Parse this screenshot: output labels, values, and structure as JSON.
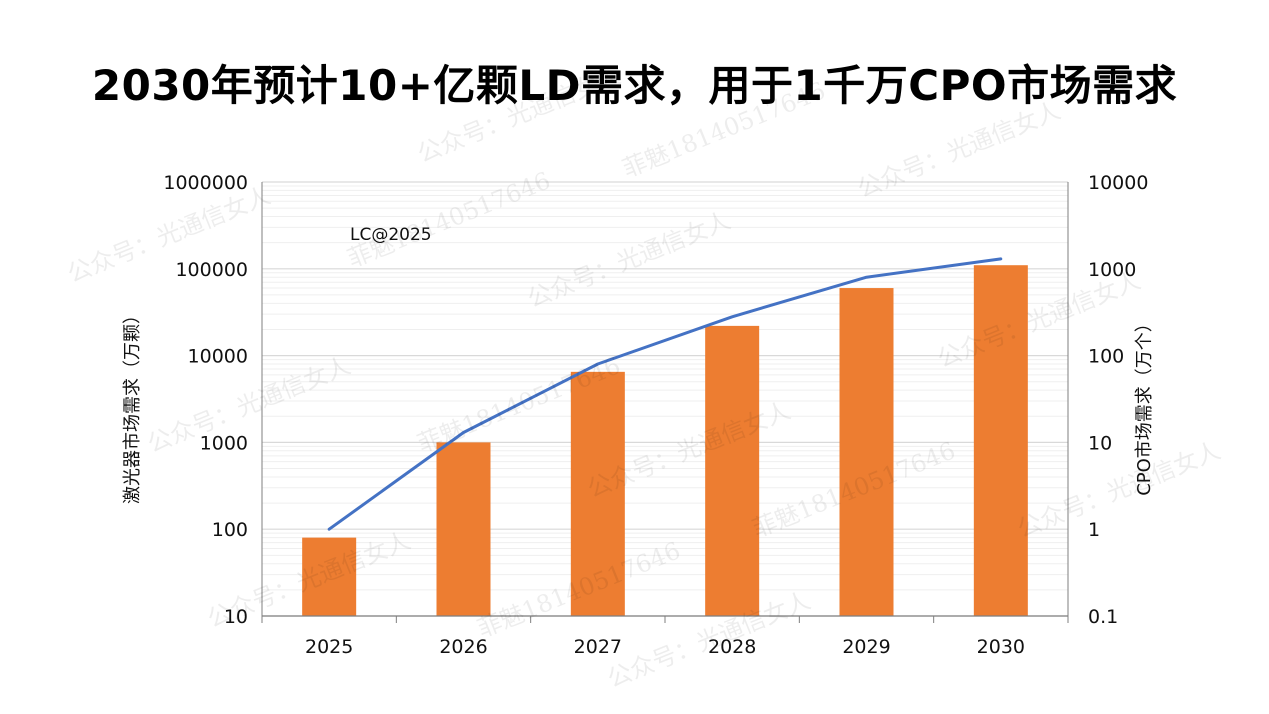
{
  "title": "2030年预计10+亿颗LD需求，用于1千万CPO市场需求",
  "watermarks": {
    "public_account": "公众号：光通信女人",
    "contact": "菲魅18140517646"
  },
  "colors": {
    "bar": "#ED7D31",
    "line": "#4472C4",
    "grid": "#d9d9d9"
  },
  "chart_data": {
    "type": "bar+line",
    "categories": [
      "2025",
      "2026",
      "2027",
      "2028",
      "2029",
      "2030"
    ],
    "series": [
      {
        "name": "激光器市场需求（万颗）",
        "type": "bar",
        "axis": "left",
        "values": [
          80,
          1000,
          6500,
          22000,
          60000,
          110000
        ]
      },
      {
        "name": "CPO市场需求（万个）",
        "type": "line",
        "axis": "right",
        "values": [
          1,
          13,
          80,
          280,
          800,
          1300
        ]
      }
    ],
    "y_left": {
      "label": "激光器市场需求（万颗）",
      "scale": "log",
      "range": [
        10,
        1000000
      ],
      "ticks": [
        "10",
        "100",
        "1000",
        "10000",
        "100000",
        "1000000"
      ]
    },
    "y_right": {
      "label": "CPO市场需求（万个）",
      "scale": "log",
      "range": [
        0.1,
        10000
      ],
      "ticks": [
        "0.1",
        "1",
        "10",
        "100",
        "1000",
        "10000"
      ]
    },
    "annotation": "LC@2025",
    "grid": true
  }
}
